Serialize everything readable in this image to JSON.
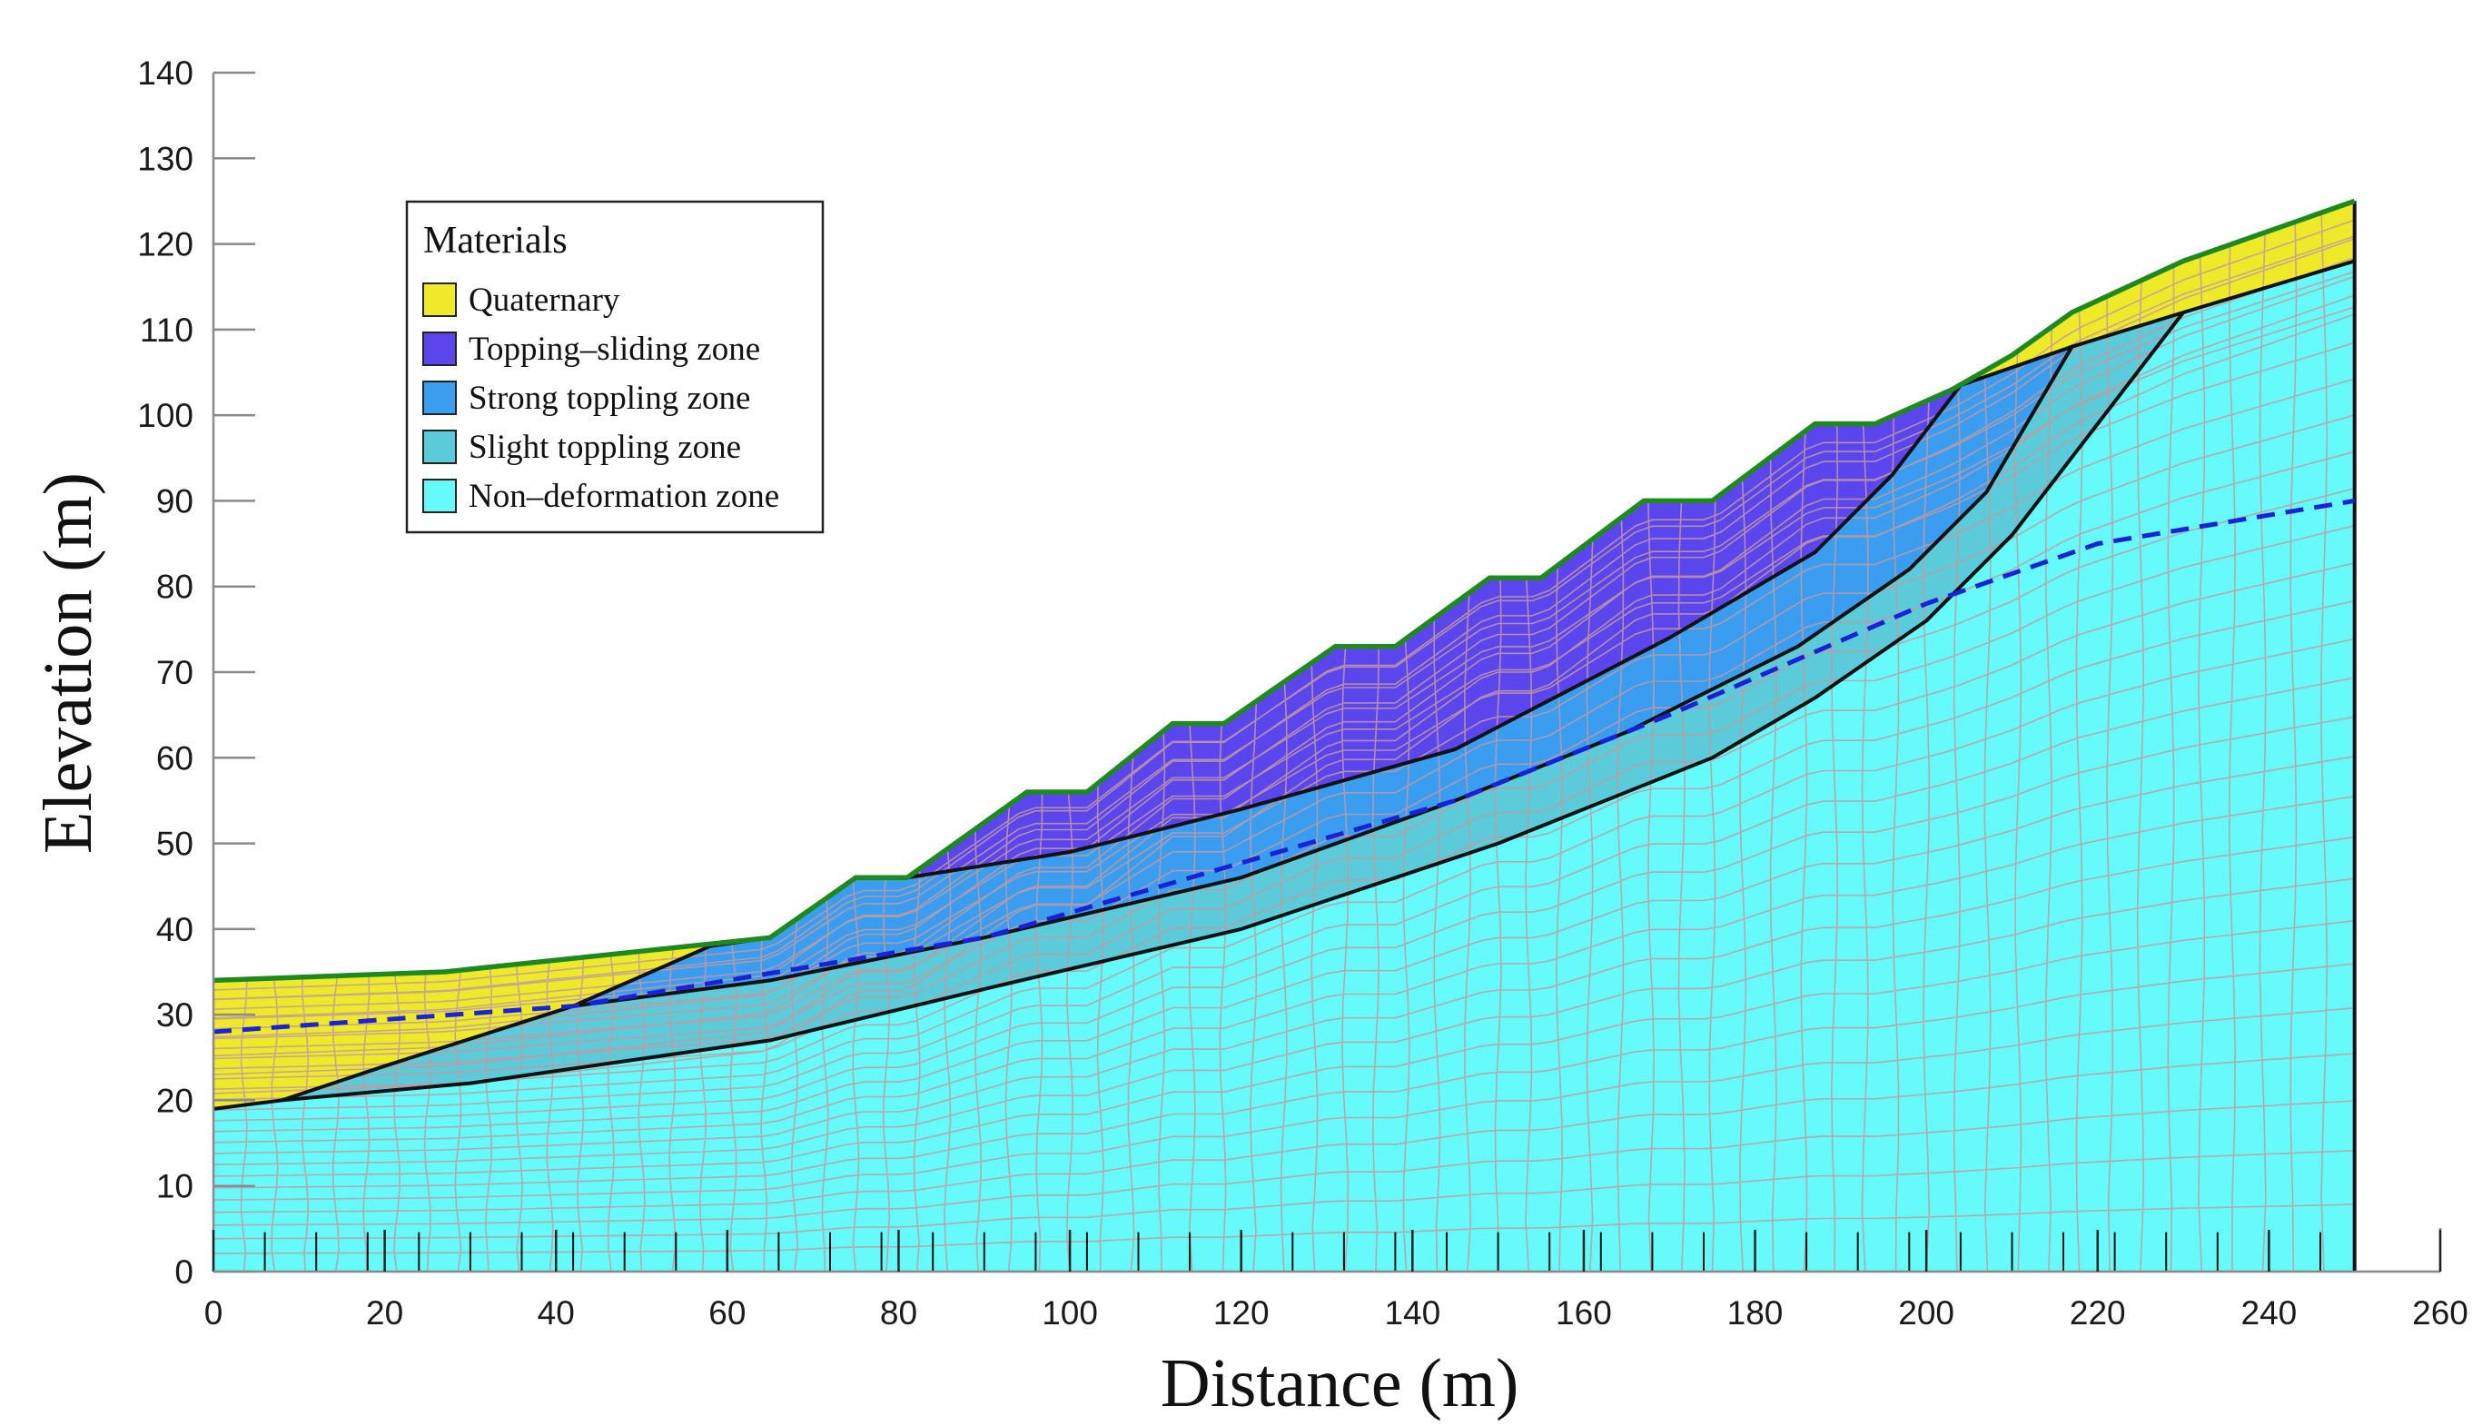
{
  "chart_data": {
    "type": "cross-section",
    "xlabel": "Distance (m)",
    "ylabel": "Elevation (m)",
    "xlim": [
      0,
      260
    ],
    "ylim": [
      0,
      140
    ],
    "x_ticks": [
      "0",
      "20",
      "40",
      "60",
      "80",
      "100",
      "120",
      "140",
      "160",
      "180",
      "200",
      "220",
      "240",
      "260"
    ],
    "y_ticks": [
      "0",
      "10",
      "20",
      "30",
      "40",
      "50",
      "60",
      "70",
      "80",
      "90",
      "100",
      "110",
      "120",
      "130",
      "140"
    ],
    "legend": {
      "title": "Materials",
      "placement": "top-left",
      "items": [
        {
          "label": "Quaternary",
          "color": "#eeea2a"
        },
        {
          "label": "Topping–sliding zone",
          "color": "#5b46ee"
        },
        {
          "label": "Strong toppling zone",
          "color": "#3a9df0"
        },
        {
          "label": "Slight toppling zone",
          "color": "#5ccbd9"
        },
        {
          "label": "Non–deformation zone",
          "color": "#66fafa"
        }
      ]
    },
    "mesh_color": "#c29aa0",
    "outline_color": "#1e8a1e",
    "boundary_color": "#111111",
    "water_table_color": "#1a22d6",
    "ground_surface": [
      [
        0,
        34
      ],
      [
        27,
        35
      ],
      [
        65,
        39
      ],
      [
        75,
        46
      ],
      [
        81,
        46
      ],
      [
        95,
        56
      ],
      [
        102,
        56
      ],
      [
        112,
        64
      ],
      [
        118,
        64
      ],
      [
        131,
        73
      ],
      [
        138,
        73
      ],
      [
        149,
        81
      ],
      [
        155,
        81
      ],
      [
        167,
        90
      ],
      [
        175,
        90
      ],
      [
        187,
        99
      ],
      [
        194,
        99
      ],
      [
        203,
        103
      ],
      [
        210,
        107
      ],
      [
        217,
        112
      ],
      [
        230,
        118
      ],
      [
        250,
        125
      ]
    ],
    "quaternary_base": [
      [
        0,
        19
      ],
      [
        8,
        20
      ],
      [
        20,
        24
      ],
      [
        42,
        31
      ],
      [
        58,
        38
      ],
      [
        65,
        39
      ]
    ],
    "quaternary_upper_base": [
      [
        204,
        103.5
      ],
      [
        217,
        108
      ],
      [
        230,
        112
      ],
      [
        250,
        118
      ]
    ],
    "sliding_zone_base": [
      [
        81,
        46
      ],
      [
        100,
        49
      ],
      [
        120,
        54
      ],
      [
        145,
        61
      ],
      [
        170,
        74
      ],
      [
        187,
        84
      ],
      [
        196,
        93
      ],
      [
        204,
        103.5
      ]
    ],
    "strong_zone_base": [
      [
        42,
        31
      ],
      [
        65,
        34
      ],
      [
        90,
        39
      ],
      [
        120,
        46
      ],
      [
        145,
        55
      ],
      [
        165,
        63
      ],
      [
        185,
        73
      ],
      [
        198,
        82
      ],
      [
        207,
        91
      ],
      [
        217,
        108
      ]
    ],
    "slight_zone_base": [
      [
        8,
        20
      ],
      [
        30,
        22
      ],
      [
        65,
        27
      ],
      [
        90,
        33
      ],
      [
        120,
        40
      ],
      [
        150,
        50
      ],
      [
        175,
        60
      ],
      [
        187,
        67
      ],
      [
        200,
        76
      ],
      [
        210,
        86
      ],
      [
        220,
        99
      ],
      [
        230,
        112
      ]
    ],
    "water_table": [
      [
        0,
        28
      ],
      [
        42,
        31
      ],
      [
        90,
        39
      ],
      [
        145,
        55
      ],
      [
        170,
        65
      ],
      [
        200,
        78
      ],
      [
        220,
        85
      ],
      [
        250,
        90
      ]
    ],
    "domain_bounds": {
      "x_min": 0,
      "x_max": 250,
      "y_min": 0
    }
  }
}
